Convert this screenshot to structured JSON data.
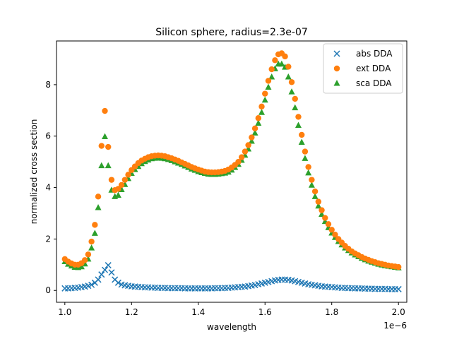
{
  "chart_data": {
    "type": "scatter",
    "title": "Silicon sphere, radius=2.3e-07",
    "xlabel": "wavelength",
    "ylabel": "normalized cross section",
    "x_offset_label": "1e−6",
    "xlim": [
      0.975,
      2.025
    ],
    "ylim": [
      -0.46,
      9.7
    ],
    "x_ticks": [
      1.0,
      1.2,
      1.4,
      1.6,
      1.8,
      2.0
    ],
    "x_tick_labels": [
      "1.0",
      "1.2",
      "1.4",
      "1.6",
      "1.8",
      "2.0"
    ],
    "y_ticks": [
      0,
      2,
      4,
      6,
      8
    ],
    "y_tick_labels": [
      "0",
      "2",
      "4",
      "6",
      "8"
    ],
    "grid": false,
    "legend_position": "top-right",
    "series": [
      {
        "name": "abs DDA",
        "marker": "x",
        "color": "#1f77b4",
        "x": [
          1.0,
          1.01,
          1.02,
          1.03,
          1.04,
          1.05,
          1.06,
          1.07,
          1.08,
          1.09,
          1.1,
          1.11,
          1.12,
          1.13,
          1.14,
          1.15,
          1.16,
          1.17,
          1.18,
          1.19,
          1.2,
          1.21,
          1.22,
          1.23,
          1.24,
          1.25,
          1.26,
          1.27,
          1.28,
          1.29,
          1.3,
          1.31,
          1.32,
          1.33,
          1.34,
          1.35,
          1.36,
          1.37,
          1.38,
          1.39,
          1.4,
          1.41,
          1.42,
          1.43,
          1.44,
          1.45,
          1.46,
          1.47,
          1.48,
          1.49,
          1.5,
          1.51,
          1.52,
          1.53,
          1.54,
          1.55,
          1.56,
          1.57,
          1.58,
          1.59,
          1.6,
          1.61,
          1.62,
          1.63,
          1.64,
          1.65,
          1.66,
          1.67,
          1.68,
          1.69,
          1.7,
          1.71,
          1.72,
          1.73,
          1.74,
          1.75,
          1.76,
          1.77,
          1.78,
          1.79,
          1.8,
          1.81,
          1.82,
          1.83,
          1.84,
          1.85,
          1.86,
          1.87,
          1.88,
          1.89,
          1.9,
          1.91,
          1.92,
          1.93,
          1.94,
          1.95,
          1.96,
          1.97,
          1.98,
          1.99,
          2.0
        ],
        "y": [
          0.08,
          0.08,
          0.09,
          0.1,
          0.11,
          0.13,
          0.15,
          0.18,
          0.22,
          0.3,
          0.42,
          0.62,
          0.8,
          0.98,
          0.7,
          0.42,
          0.3,
          0.23,
          0.2,
          0.18,
          0.16,
          0.15,
          0.14,
          0.13,
          0.12,
          0.12,
          0.11,
          0.11,
          0.1,
          0.1,
          0.1,
          0.09,
          0.09,
          0.09,
          0.09,
          0.09,
          0.08,
          0.08,
          0.08,
          0.08,
          0.08,
          0.08,
          0.08,
          0.08,
          0.08,
          0.09,
          0.09,
          0.09,
          0.1,
          0.1,
          0.11,
          0.12,
          0.13,
          0.14,
          0.15,
          0.17,
          0.19,
          0.21,
          0.24,
          0.27,
          0.3,
          0.33,
          0.36,
          0.39,
          0.41,
          0.42,
          0.42,
          0.41,
          0.39,
          0.36,
          0.33,
          0.3,
          0.27,
          0.24,
          0.22,
          0.2,
          0.18,
          0.16,
          0.15,
          0.14,
          0.13,
          0.12,
          0.11,
          0.1,
          0.1,
          0.09,
          0.09,
          0.08,
          0.08,
          0.08,
          0.07,
          0.07,
          0.07,
          0.06,
          0.06,
          0.06,
          0.06,
          0.05,
          0.05,
          0.05,
          0.05
        ]
      },
      {
        "name": "ext DDA",
        "marker": "o",
        "color": "#ff7f0e",
        "x": [
          1.0,
          1.01,
          1.02,
          1.03,
          1.04,
          1.05,
          1.06,
          1.07,
          1.08,
          1.09,
          1.1,
          1.11,
          1.12,
          1.13,
          1.14,
          1.15,
          1.16,
          1.17,
          1.18,
          1.19,
          1.2,
          1.21,
          1.22,
          1.23,
          1.24,
          1.25,
          1.26,
          1.27,
          1.28,
          1.29,
          1.3,
          1.31,
          1.32,
          1.33,
          1.34,
          1.35,
          1.36,
          1.37,
          1.38,
          1.39,
          1.4,
          1.41,
          1.42,
          1.43,
          1.44,
          1.45,
          1.46,
          1.47,
          1.48,
          1.49,
          1.5,
          1.51,
          1.52,
          1.53,
          1.54,
          1.55,
          1.56,
          1.57,
          1.58,
          1.59,
          1.6,
          1.61,
          1.62,
          1.63,
          1.64,
          1.65,
          1.66,
          1.67,
          1.68,
          1.69,
          1.7,
          1.71,
          1.72,
          1.73,
          1.74,
          1.75,
          1.76,
          1.77,
          1.78,
          1.79,
          1.8,
          1.81,
          1.82,
          1.83,
          1.84,
          1.85,
          1.86,
          1.87,
          1.88,
          1.89,
          1.9,
          1.91,
          1.92,
          1.93,
          1.94,
          1.95,
          1.96,
          1.97,
          1.98,
          1.99,
          2.0
        ],
        "y": [
          1.22,
          1.12,
          1.05,
          1.0,
          1.0,
          1.06,
          1.18,
          1.4,
          1.9,
          2.55,
          3.65,
          5.62,
          6.98,
          5.58,
          4.3,
          3.9,
          3.95,
          4.1,
          4.3,
          4.5,
          4.68,
          4.82,
          4.95,
          5.05,
          5.12,
          5.18,
          5.22,
          5.24,
          5.25,
          5.24,
          5.22,
          5.18,
          5.14,
          5.09,
          5.04,
          4.98,
          4.92,
          4.86,
          4.8,
          4.75,
          4.7,
          4.66,
          4.62,
          4.6,
          4.59,
          4.59,
          4.6,
          4.62,
          4.65,
          4.7,
          4.78,
          4.88,
          5.0,
          5.18,
          5.4,
          5.65,
          5.95,
          6.3,
          6.7,
          7.15,
          7.65,
          8.15,
          8.6,
          8.95,
          9.18,
          9.22,
          9.1,
          8.7,
          8.1,
          7.45,
          6.75,
          6.05,
          5.4,
          4.8,
          4.3,
          3.85,
          3.45,
          3.12,
          2.82,
          2.58,
          2.36,
          2.17,
          2.0,
          1.86,
          1.73,
          1.62,
          1.52,
          1.44,
          1.37,
          1.3,
          1.24,
          1.19,
          1.14,
          1.1,
          1.06,
          1.03,
          1.0,
          0.97,
          0.95,
          0.93,
          0.91
        ]
      },
      {
        "name": "sca DDA",
        "marker": "^",
        "color": "#2ca02c",
        "x": [
          1.0,
          1.01,
          1.02,
          1.03,
          1.04,
          1.05,
          1.06,
          1.07,
          1.08,
          1.09,
          1.1,
          1.11,
          1.12,
          1.13,
          1.14,
          1.15,
          1.16,
          1.17,
          1.18,
          1.19,
          1.2,
          1.21,
          1.22,
          1.23,
          1.24,
          1.25,
          1.26,
          1.27,
          1.28,
          1.29,
          1.3,
          1.31,
          1.32,
          1.33,
          1.34,
          1.35,
          1.36,
          1.37,
          1.38,
          1.39,
          1.4,
          1.41,
          1.42,
          1.43,
          1.44,
          1.45,
          1.46,
          1.47,
          1.48,
          1.49,
          1.5,
          1.51,
          1.52,
          1.53,
          1.54,
          1.55,
          1.56,
          1.57,
          1.58,
          1.59,
          1.6,
          1.61,
          1.62,
          1.63,
          1.64,
          1.65,
          1.66,
          1.67,
          1.68,
          1.69,
          1.7,
          1.71,
          1.72,
          1.73,
          1.74,
          1.75,
          1.76,
          1.77,
          1.78,
          1.79,
          1.8,
          1.81,
          1.82,
          1.83,
          1.84,
          1.85,
          1.86,
          1.87,
          1.88,
          1.89,
          1.9,
          1.91,
          1.92,
          1.93,
          1.94,
          1.95,
          1.96,
          1.97,
          1.98,
          1.99,
          2.0
        ],
        "y": [
          1.12,
          1.02,
          0.95,
          0.9,
          0.89,
          0.92,
          1.03,
          1.22,
          1.65,
          2.22,
          3.22,
          4.85,
          5.98,
          4.85,
          3.9,
          3.65,
          3.7,
          3.92,
          4.12,
          4.35,
          4.55,
          4.7,
          4.82,
          4.93,
          5.01,
          5.07,
          5.12,
          5.14,
          5.15,
          5.14,
          5.12,
          5.09,
          5.05,
          5.0,
          4.95,
          4.9,
          4.84,
          4.78,
          4.72,
          4.67,
          4.62,
          4.58,
          4.55,
          4.52,
          4.51,
          4.51,
          4.52,
          4.54,
          4.56,
          4.6,
          4.68,
          4.78,
          4.9,
          5.06,
          5.26,
          5.5,
          5.8,
          6.12,
          6.5,
          6.92,
          7.4,
          7.9,
          8.3,
          8.62,
          8.8,
          8.8,
          8.68,
          8.3,
          7.72,
          7.1,
          6.42,
          5.76,
          5.13,
          4.57,
          4.09,
          3.65,
          3.28,
          2.96,
          2.68,
          2.44,
          2.23,
          2.06,
          1.9,
          1.77,
          1.65,
          1.55,
          1.46,
          1.38,
          1.31,
          1.25,
          1.19,
          1.14,
          1.1,
          1.06,
          1.02,
          0.99,
          0.96,
          0.94,
          0.92,
          0.9,
          0.88
        ]
      }
    ]
  }
}
